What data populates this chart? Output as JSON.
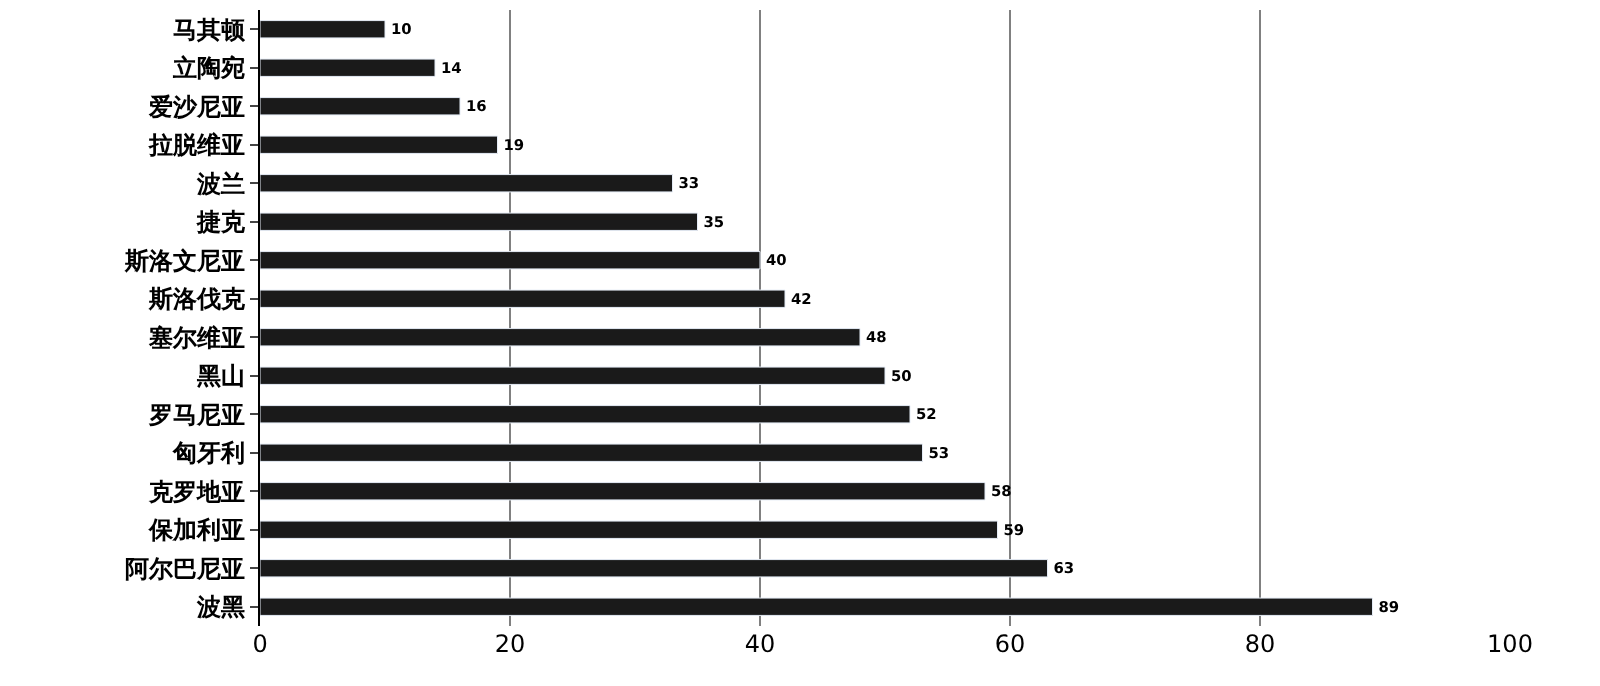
{
  "chart_data": {
    "type": "bar",
    "orientation": "horizontal",
    "categories": [
      "马其顿",
      "立陶宛",
      "爱沙尼亚",
      "拉脱维亚",
      "波兰",
      "捷克",
      "斯洛文尼亚",
      "斯洛伐克",
      "塞尔维亚",
      "黑山",
      "罗马尼亚",
      "匈牙利",
      "克罗地亚",
      "保加利亚",
      "阿尔巴尼亚",
      "波黑"
    ],
    "values": [
      10,
      14,
      16,
      19,
      33,
      35,
      40,
      42,
      48,
      50,
      52,
      53,
      58,
      59,
      63,
      89
    ],
    "color": "#1a1a1a",
    "xlim": [
      0,
      100
    ],
    "xticks": [
      0,
      20,
      40,
      60,
      80,
      100
    ],
    "grid": "x",
    "data_labels": true,
    "legend": false
  }
}
